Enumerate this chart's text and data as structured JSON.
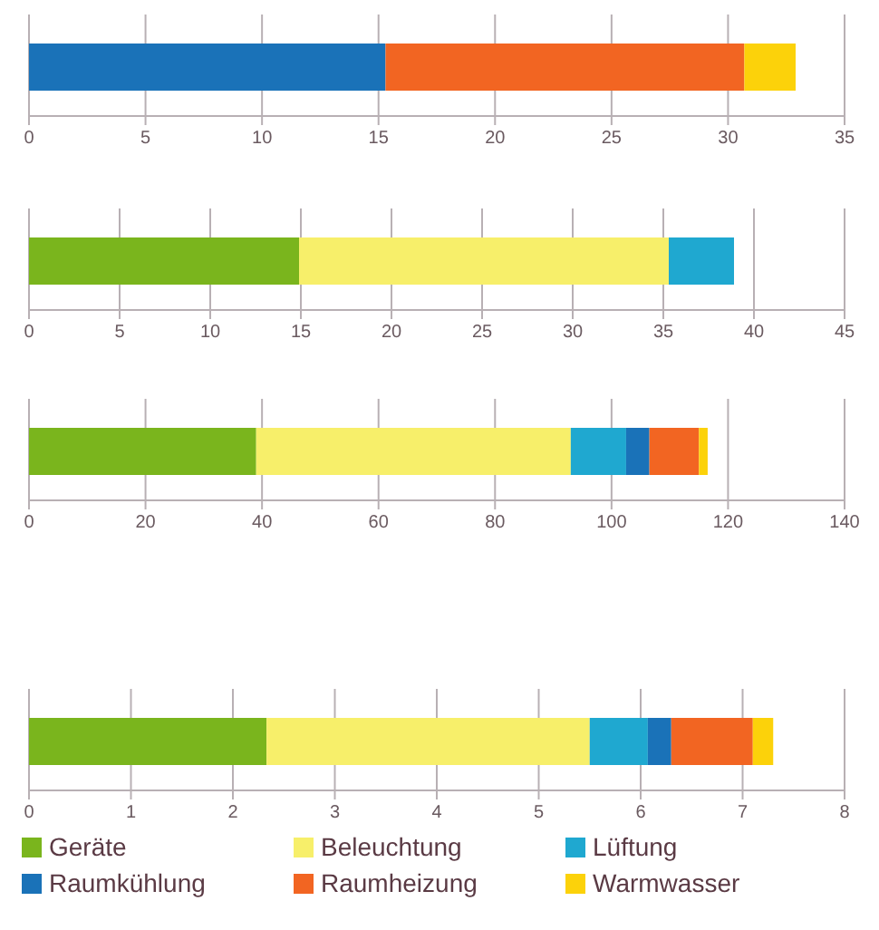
{
  "chart_data": [
    {
      "type": "bar",
      "orientation": "horizontal",
      "stacked": true,
      "categories": [
        null
      ],
      "xlim": [
        0,
        35
      ],
      "xticks": [
        0,
        5,
        10,
        15,
        20,
        25,
        30,
        35
      ],
      "grid": "x",
      "legend": false,
      "series": [
        {
          "color": "#1a72b8",
          "values": [
            15.3
          ]
        },
        {
          "color": "#f26522",
          "values": [
            15.4
          ]
        },
        {
          "color": "#fcd20a",
          "values": [
            2.2
          ]
        }
      ]
    },
    {
      "type": "bar",
      "orientation": "horizontal",
      "stacked": true,
      "categories": [
        null
      ],
      "xlim": [
        0,
        45
      ],
      "xticks": [
        0,
        5,
        10,
        15,
        20,
        25,
        30,
        35,
        40,
        45
      ],
      "grid": "x",
      "legend": false,
      "series": [
        {
          "color": "#7ab51d",
          "values": [
            14.9
          ]
        },
        {
          "color": "#f7ef6a",
          "values": [
            20.4
          ]
        },
        {
          "color": "#1fa8d0",
          "values": [
            3.6
          ]
        }
      ]
    },
    {
      "type": "bar",
      "orientation": "horizontal",
      "stacked": true,
      "categories": [
        null
      ],
      "xlim": [
        0,
        140
      ],
      "xticks": [
        0,
        20,
        40,
        60,
        80,
        100,
        120,
        140
      ],
      "grid": "x",
      "legend": false,
      "series": [
        {
          "color": "#7ab51d",
          "values": [
            39
          ]
        },
        {
          "color": "#f7ef6a",
          "values": [
            54
          ]
        },
        {
          "color": "#1fa8d0",
          "values": [
            9.5
          ]
        },
        {
          "color": "#1a72b8",
          "values": [
            4
          ]
        },
        {
          "color": "#f26522",
          "values": [
            8.5
          ]
        },
        {
          "color": "#fcd20a",
          "values": [
            1.5
          ]
        }
      ]
    },
    {
      "type": "bar",
      "orientation": "horizontal",
      "stacked": true,
      "categories": [
        null
      ],
      "xlim": [
        0,
        8
      ],
      "xticks": [
        0,
        1,
        2,
        3,
        4,
        5,
        6,
        7,
        8
      ],
      "grid": "x",
      "legend": "bottom",
      "series": [
        {
          "name": "Geräte",
          "color": "#7ab51d",
          "values": [
            2.33
          ]
        },
        {
          "name": "Beleuchtung",
          "color": "#f7ef6a",
          "values": [
            3.17
          ]
        },
        {
          "name": "Lüftung",
          "color": "#1fa8d0",
          "values": [
            0.57
          ]
        },
        {
          "name": "Raumkühlung",
          "color": "#1a72b8",
          "values": [
            0.23
          ]
        },
        {
          "name": "Raumheizung",
          "color": "#f26522",
          "values": [
            0.8
          ]
        },
        {
          "name": "Warmwasser",
          "color": "#fcd20a",
          "values": [
            0.2
          ]
        }
      ]
    }
  ]
}
